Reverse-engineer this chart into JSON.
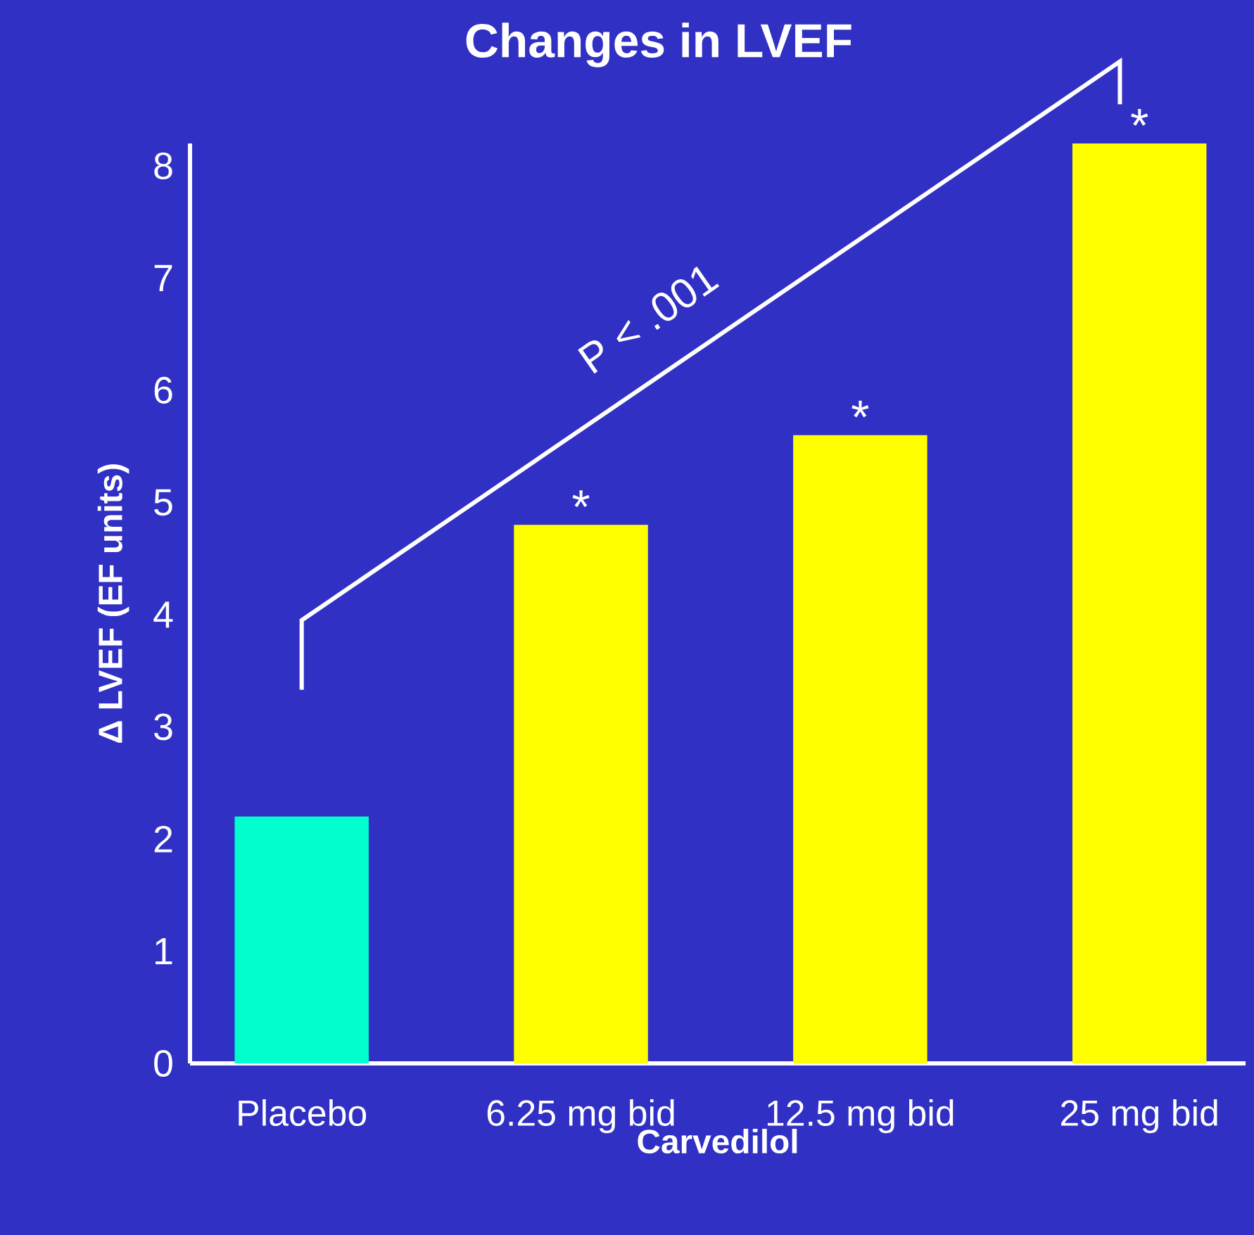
{
  "chart_data": {
    "type": "bar",
    "title": "Changes in LVEF",
    "xlabel": "Carvedilol",
    "ylabel": "Δ LVEF (EF units)",
    "categories": [
      "Placebo",
      "6.25 mg bid",
      "12.5 mg bid",
      "25 mg bid"
    ],
    "values": [
      2.2,
      4.8,
      5.6,
      8.2
    ],
    "colors": [
      "#00ffcc",
      "#ffff00",
      "#ffff00",
      "#ffff00"
    ],
    "ylim": [
      0,
      8.2
    ],
    "yticks": [
      0,
      1,
      2,
      3,
      4,
      5,
      6,
      7,
      8
    ],
    "annotations": [
      "P < .001",
      {
        "text": "*",
        "x": "6.25 mg bid",
        "y": 4.8
      },
      {
        "text": "*",
        "x": "12.5 mg bid",
        "y": 5.6
      },
      {
        "text": "*",
        "x": "25 mg bid",
        "y": 8.2
      }
    ]
  }
}
